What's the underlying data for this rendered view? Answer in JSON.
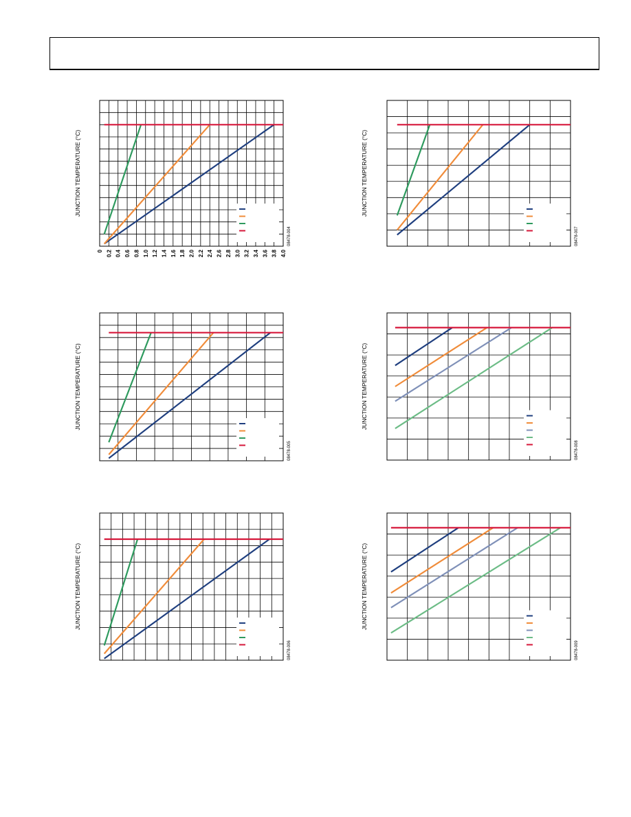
{
  "colors": {
    "navy": "#1f3f7f",
    "orange": "#f08c3a",
    "green": "#2e9a5e",
    "red": "#d6173a",
    "slate": "#7f90b8",
    "lightgreen": "#6cbc86",
    "grid": "#000000"
  },
  "chart_data": [
    {
      "type": "line",
      "panel": "top-left",
      "ylabel": "JUNCTION TEMPERATURE (°C)",
      "ylabel_rotated": true,
      "figure_code": "08478-004",
      "xlim": [
        0,
        4.0
      ],
      "ylim": [
        0,
        12
      ],
      "x_ticks": [
        0,
        0.2,
        0.4,
        0.6,
        0.8,
        1.0,
        1.2,
        1.4,
        1.6,
        1.8,
        2.0,
        2.2,
        2.4,
        2.6,
        2.8,
        3.0,
        3.2,
        3.4,
        3.6,
        3.8,
        4.0
      ],
      "x_tick_labels": [
        "0",
        "0.2",
        "0.4",
        "0.6",
        "0.8",
        "1.0",
        "1.2",
        "1.4",
        "1.6",
        "1.8",
        "2.0",
        "2.2",
        "2.4",
        "2.6",
        "2.8",
        "3.0",
        "3.2",
        "3.4",
        "3.6",
        "3.8",
        "4.0"
      ],
      "y_ticks": [
        0,
        1,
        2,
        3,
        4,
        5,
        6,
        7,
        8,
        9,
        10,
        11,
        12
      ],
      "grid": true,
      "legend_position": "bottom-right",
      "series": [
        {
          "color_key": "navy",
          "x": [
            0.1,
            3.8
          ],
          "y": [
            0.2,
            10.0
          ]
        },
        {
          "color_key": "orange",
          "x": [
            0.1,
            2.4
          ],
          "y": [
            0.2,
            10.0
          ]
        },
        {
          "color_key": "green",
          "x": [
            0.1,
            0.9
          ],
          "y": [
            1.0,
            10.0
          ]
        },
        {
          "color_key": "red",
          "x": [
            0.1,
            4.0
          ],
          "y": [
            10.0,
            10.0
          ]
        }
      ]
    },
    {
      "type": "line",
      "panel": "top-right",
      "ylabel": "JUNCTION TEMPERATURE (°C)",
      "ylabel_rotated": true,
      "figure_code": "08478-007",
      "xlim": [
        0,
        9
      ],
      "ylim": [
        0,
        9
      ],
      "y_ticks": [
        0,
        1,
        2,
        3,
        4,
        5,
        6,
        7,
        8,
        9
      ],
      "grid": true,
      "legend_position": "bottom-right",
      "series": [
        {
          "color_key": "navy",
          "x": [
            0.5,
            7.0
          ],
          "y": [
            0.7,
            7.5
          ]
        },
        {
          "color_key": "orange",
          "x": [
            0.5,
            4.7
          ],
          "y": [
            1.0,
            7.5
          ]
        },
        {
          "color_key": "green",
          "x": [
            0.5,
            2.1
          ],
          "y": [
            1.9,
            7.5
          ]
        },
        {
          "color_key": "red",
          "x": [
            0.5,
            9.0
          ],
          "y": [
            7.5,
            7.5
          ]
        }
      ]
    },
    {
      "type": "line",
      "panel": "middle-left",
      "ylabel": "JUNCTION TEMPERATURE (°C)",
      "ylabel_rotated": true,
      "figure_code": "08478-005",
      "xlim": [
        0,
        10
      ],
      "ylim": [
        0,
        12
      ],
      "y_ticks": [
        0,
        1,
        2,
        3,
        4,
        5,
        6,
        7,
        8,
        9,
        10,
        11,
        12
      ],
      "grid": true,
      "legend_position": "bottom-right",
      "series": [
        {
          "color_key": "navy",
          "x": [
            0.5,
            9.3
          ],
          "y": [
            0.2,
            10.4
          ]
        },
        {
          "color_key": "orange",
          "x": [
            0.5,
            6.2
          ],
          "y": [
            0.5,
            10.4
          ]
        },
        {
          "color_key": "green",
          "x": [
            0.5,
            2.8
          ],
          "y": [
            1.5,
            10.4
          ]
        },
        {
          "color_key": "red",
          "x": [
            0.5,
            10.0
          ],
          "y": [
            10.4,
            10.4
          ]
        }
      ]
    },
    {
      "type": "line",
      "panel": "middle-right",
      "ylabel": "JUNCTION TEMPERATURE (°C)",
      "ylabel_rotated": true,
      "figure_code": "08478-008",
      "xlim": [
        0,
        9
      ],
      "ylim": [
        0,
        7
      ],
      "y_ticks": [
        0,
        1,
        2,
        3,
        4,
        5,
        6,
        7
      ],
      "grid": true,
      "legend_position": "bottom-right",
      "series": [
        {
          "color_key": "navy",
          "x": [
            0.4,
            3.2
          ],
          "y": [
            4.5,
            6.3
          ]
        },
        {
          "color_key": "orange",
          "x": [
            0.4,
            4.9
          ],
          "y": [
            3.5,
            6.3
          ]
        },
        {
          "color_key": "slate",
          "x": [
            0.4,
            6.1
          ],
          "y": [
            2.8,
            6.3
          ]
        },
        {
          "color_key": "lightgreen",
          "x": [
            0.4,
            8.1
          ],
          "y": [
            1.5,
            6.3
          ]
        },
        {
          "color_key": "red",
          "x": [
            0.4,
            9.0
          ],
          "y": [
            6.3,
            6.3
          ]
        }
      ]
    },
    {
      "type": "line",
      "panel": "bottom-left",
      "ylabel": "JUNCTION TEMPERATURE (°C)",
      "ylabel_rotated": true,
      "figure_code": "08478-006",
      "xlim": [
        0,
        16
      ],
      "ylim": [
        0,
        9
      ],
      "y_ticks": [
        0,
        1,
        2,
        3,
        4,
        5,
        6,
        7,
        8,
        9
      ],
      "grid": true,
      "legend_position": "bottom-right",
      "series": [
        {
          "color_key": "navy",
          "x": [
            0.4,
            14.8
          ],
          "y": [
            0.1,
            7.4
          ]
        },
        {
          "color_key": "orange",
          "x": [
            0.4,
            9.1
          ],
          "y": [
            0.4,
            7.4
          ]
        },
        {
          "color_key": "green",
          "x": [
            0.4,
            3.3
          ],
          "y": [
            0.9,
            7.4
          ]
        },
        {
          "color_key": "red",
          "x": [
            0.4,
            16.0
          ],
          "y": [
            7.4,
            7.4
          ]
        }
      ]
    },
    {
      "type": "line",
      "panel": "bottom-right",
      "ylabel": "JUNCTION TEMPERATURE (°C)",
      "ylabel_rotated": true,
      "figure_code": "08478-009",
      "xlim": [
        0,
        9
      ],
      "ylim": [
        0,
        7
      ],
      "y_ticks": [
        0,
        1,
        2,
        3,
        4,
        5,
        6,
        7
      ],
      "grid": true,
      "legend_position": "bottom-right",
      "series": [
        {
          "color_key": "navy",
          "x": [
            0.2,
            3.5
          ],
          "y": [
            4.2,
            6.3
          ]
        },
        {
          "color_key": "orange",
          "x": [
            0.2,
            5.2
          ],
          "y": [
            3.2,
            6.3
          ]
        },
        {
          "color_key": "slate",
          "x": [
            0.2,
            6.4
          ],
          "y": [
            2.5,
            6.3
          ]
        },
        {
          "color_key": "lightgreen",
          "x": [
            0.2,
            8.5
          ],
          "y": [
            1.3,
            6.3
          ]
        },
        {
          "color_key": "red",
          "x": [
            0.2,
            9.0
          ],
          "y": [
            6.3,
            6.3
          ]
        }
      ]
    }
  ]
}
